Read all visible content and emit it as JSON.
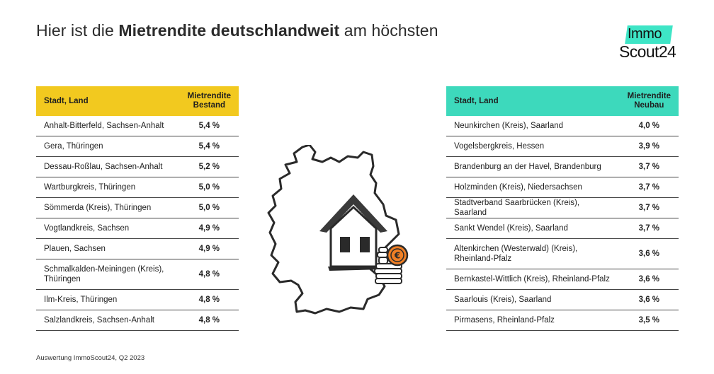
{
  "headline": {
    "prefix": "Hier ist die ",
    "bold": "Mietrendite deutschlandweit",
    "suffix": " am höchsten"
  },
  "logo": {
    "line1": "Immo",
    "line2": "Scout24",
    "accent": "#3ee5c6"
  },
  "left_table": {
    "header_color": "#f2c91f",
    "col1": "Stadt, Land",
    "col2_line1": "Mietrendite",
    "col2_line2": "Bestand",
    "rows": [
      {
        "place": "Anhalt-Bitterfeld, Sachsen-Anhalt",
        "value": "5,4 %"
      },
      {
        "place": "Gera, Thüringen",
        "value": "5,4 %"
      },
      {
        "place": "Dessau-Roßlau, Sachsen-Anhalt",
        "value": "5,2 %"
      },
      {
        "place": "Wartburgkreis, Thüringen",
        "value": "5,0 %"
      },
      {
        "place": "Sömmerda (Kreis), Thüringen",
        "value": "5,0 %"
      },
      {
        "place": "Vogtlandkreis, Sachsen",
        "value": "4,9 %"
      },
      {
        "place": "Plauen, Sachsen",
        "value": "4,9 %"
      },
      {
        "place": "Schmalkalden-Meiningen (Kreis), Thüringen",
        "value": "4,8 %"
      },
      {
        "place": "Ilm-Kreis, Thüringen",
        "value": "4,8 %"
      },
      {
        "place": "Salzlandkreis, Sachsen-Anhalt",
        "value": "4,8 %"
      }
    ]
  },
  "right_table": {
    "header_color": "#3dd9bc",
    "col1": "Stadt, Land",
    "col2_line1": "Mietrendite",
    "col2_line2": "Neubau",
    "rows": [
      {
        "place": "Neunkirchen (Kreis), Saarland",
        "value": "4,0 %"
      },
      {
        "place": "Vogelsbergkreis, Hessen",
        "value": "3,9 %"
      },
      {
        "place": "Brandenburg an der Havel, Brandenburg",
        "value": "3,7 %"
      },
      {
        "place": "Holzminden (Kreis), Niedersachsen",
        "value": "3,7 %"
      },
      {
        "place": "Stadtverband Saarbrücken (Kreis), Saarland",
        "value": "3,7 %"
      },
      {
        "place": "Sankt Wendel (Kreis), Saarland",
        "value": "3,7 %"
      },
      {
        "place": "Altenkirchen (Westerwald) (Kreis), Rheinland-Pfalz",
        "value": "3,6 %"
      },
      {
        "place": "Bernkastel-Wittlich (Kreis), Rheinland-Pfalz",
        "value": "3,6 %"
      },
      {
        "place": "Saarlouis (Kreis), Saarland",
        "value": "3,6 %"
      },
      {
        "place": "Pirmasens, Rheinland-Pfalz",
        "value": "3,5 %"
      }
    ]
  },
  "illustration": {
    "coin_symbol": "€",
    "icon": "germany-map-house-coins-icon"
  },
  "source": "Auswertung ImmoScout24, Q2 2023"
}
